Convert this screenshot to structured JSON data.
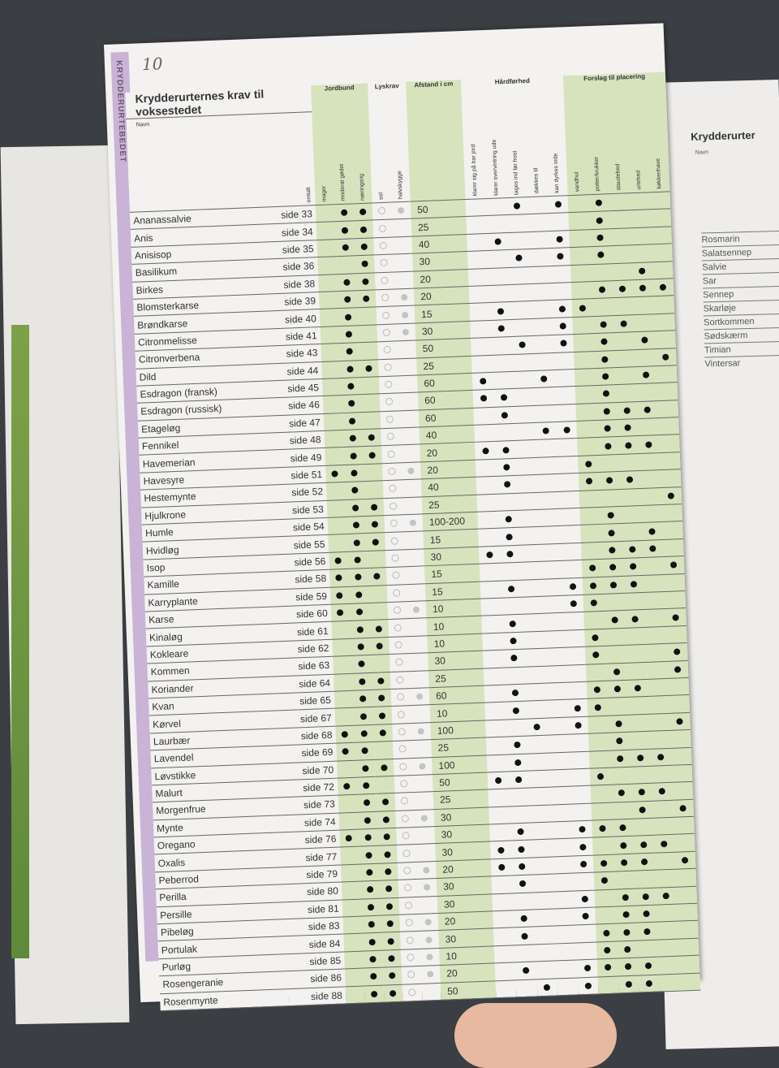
{
  "page": {
    "number": "10",
    "side_tab": "KRYDDERURTEBEDET",
    "title": "Krydderurternes krav til voksestedet"
  },
  "header": {
    "navn": "Navn",
    "omtalt": "omtalt",
    "groups": {
      "jordbund": "Jordbund",
      "lyskrav": "Lyskrav",
      "afstand": "Afstand i cm",
      "hardforhed": "Hårdførhed",
      "placering": "Forslag til placering"
    },
    "jordbund": [
      "mager",
      "moderat gødet",
      "næringsrig"
    ],
    "lyskrav": [
      "sol",
      "halvskygge"
    ],
    "hardforhed": [
      "klarer sig på bar jord",
      "klarer overvintring ude",
      "tages ind før frost",
      "dækkes til",
      "kan dyrkes inde"
    ],
    "placering": [
      "vandhul",
      "potter/krukker",
      "staudebed",
      "urtebed",
      "køkkenhave"
    ]
  },
  "icons": {
    "filled": "black-dot-icon",
    "sol": "open-circle-icon",
    "halvskygge": "grey-dot-icon"
  },
  "colors": {
    "green_column": "#d7e3bd",
    "tab": "#c9b3d6"
  },
  "rows": [
    {
      "name": "Ananassalvie",
      "page": "side 33",
      "dist": "50",
      "soil": "011",
      "light": "11",
      "hard": "00101",
      "place": "01000"
    },
    {
      "name": "Anis",
      "page": "side 34",
      "dist": "25",
      "soil": "011",
      "light": "10",
      "hard": "00000",
      "place": "01000"
    },
    {
      "name": "Anisisop",
      "page": "side 35",
      "dist": "40",
      "soil": "011",
      "light": "10",
      "hard": "01001",
      "place": "01000"
    },
    {
      "name": "Basilikum",
      "page": "side 36",
      "dist": "30",
      "soil": "001",
      "light": "10",
      "hard": "00101",
      "place": "01000"
    },
    {
      "name": "Birkes",
      "page": "side 38",
      "dist": "20",
      "soil": "011",
      "light": "10",
      "hard": "00000",
      "place": "00010"
    },
    {
      "name": "Blomsterkarse",
      "page": "side 39",
      "dist": "20",
      "soil": "011",
      "light": "11",
      "hard": "00000",
      "place": "01111"
    },
    {
      "name": "Brøndkarse",
      "page": "side 40",
      "dist": "15",
      "soil": "010",
      "light": "11",
      "hard": "01001",
      "place": "10000"
    },
    {
      "name": "Citronmelisse",
      "page": "side 41",
      "dist": "30",
      "soil": "010",
      "light": "11",
      "hard": "01001",
      "place": "01100"
    },
    {
      "name": "Citronverbena",
      "page": "side 43",
      "dist": "50",
      "soil": "010",
      "light": "10",
      "hard": "00101",
      "place": "01010"
    },
    {
      "name": "Dild",
      "page": "side 44",
      "dist": "25",
      "soil": "011",
      "light": "10",
      "hard": "00000",
      "place": "01001"
    },
    {
      "name": "Esdragon (fransk)",
      "page": "side 45",
      "dist": "60",
      "soil": "010",
      "light": "10",
      "hard": "10010",
      "place": "01010"
    },
    {
      "name": "Esdragon (russisk)",
      "page": "side 46",
      "dist": "60",
      "soil": "010",
      "light": "10",
      "hard": "11000",
      "place": "01000"
    },
    {
      "name": "Etageløg",
      "page": "side 47",
      "dist": "60",
      "soil": "010",
      "light": "10",
      "hard": "01000",
      "place": "01110"
    },
    {
      "name": "Fennikel",
      "page": "side 48",
      "dist": "40",
      "soil": "011",
      "light": "10",
      "hard": "00011",
      "place": "01100"
    },
    {
      "name": "Havemerian",
      "page": "side 49",
      "dist": "20",
      "soil": "011",
      "light": "10",
      "hard": "11000",
      "place": "01110"
    },
    {
      "name": "Havesyre",
      "page": "side 51",
      "dist": "20",
      "soil": "110",
      "light": "11",
      "hard": "01000",
      "place": "10000"
    },
    {
      "name": "Hestemynte",
      "page": "side 52",
      "dist": "40",
      "soil": "010",
      "light": "10",
      "hard": "01000",
      "place": "11100"
    },
    {
      "name": "Hjulkrone",
      "page": "side 53",
      "dist": "25",
      "soil": "011",
      "light": "10",
      "hard": "00000",
      "place": "00001"
    },
    {
      "name": "Humle",
      "page": "side 54",
      "dist": "100-200",
      "soil": "011",
      "light": "11",
      "hard": "01000",
      "place": "01000"
    },
    {
      "name": "Hvidløg",
      "page": "side 55",
      "dist": "15",
      "soil": "011",
      "light": "10",
      "hard": "01000",
      "place": "01010"
    },
    {
      "name": "Isop",
      "page": "side 56",
      "dist": "30",
      "soil": "110",
      "light": "10",
      "hard": "11000",
      "place": "01110"
    },
    {
      "name": "Kamille",
      "page": "side 58",
      "dist": "15",
      "soil": "111",
      "light": "10",
      "hard": "00000",
      "place": "11101"
    },
    {
      "name": "Karryplante",
      "page": "side 59",
      "dist": "15",
      "soil": "110",
      "light": "10",
      "hard": "01001",
      "place": "11100"
    },
    {
      "name": "Karse",
      "page": "side 60",
      "dist": "10",
      "soil": "110",
      "light": "11",
      "hard": "00001",
      "place": "10000"
    },
    {
      "name": "Kinaløg",
      "page": "side 61",
      "dist": "10",
      "soil": "011",
      "light": "10",
      "hard": "01000",
      "place": "01101"
    },
    {
      "name": "Kokleare",
      "page": "side 62",
      "dist": "10",
      "soil": "011",
      "light": "10",
      "hard": "01000",
      "place": "10000"
    },
    {
      "name": "Kommen",
      "page": "side 63",
      "dist": "30",
      "soil": "010",
      "light": "10",
      "hard": "01000",
      "place": "10001"
    },
    {
      "name": "Koriander",
      "page": "side 64",
      "dist": "25",
      "soil": "011",
      "light": "10",
      "hard": "00000",
      "place": "01001"
    },
    {
      "name": "Kvan",
      "page": "side 65",
      "dist": "60",
      "soil": "011",
      "light": "11",
      "hard": "01000",
      "place": "11100"
    },
    {
      "name": "Kørvel",
      "page": "side 67",
      "dist": "10",
      "soil": "011",
      "light": "10",
      "hard": "01001",
      "place": "10000"
    },
    {
      "name": "Laurbær",
      "page": "side 68",
      "dist": "100",
      "soil": "111",
      "light": "11",
      "hard": "00101",
      "place": "01001"
    },
    {
      "name": "Lavendel",
      "page": "side 69",
      "dist": "25",
      "soil": "110",
      "light": "10",
      "hard": "01000",
      "place": "01000"
    },
    {
      "name": "Løvstikke",
      "page": "side 70",
      "dist": "100",
      "soil": "011",
      "light": "11",
      "hard": "01000",
      "place": "01110"
    },
    {
      "name": "Malurt",
      "page": "side 72",
      "dist": "50",
      "soil": "110",
      "light": "10",
      "hard": "11000",
      "place": "10000"
    },
    {
      "name": "Morgenfrue",
      "page": "side 73",
      "dist": "25",
      "soil": "011",
      "light": "10",
      "hard": "00000",
      "place": "01110"
    },
    {
      "name": "Mynte",
      "page": "side 74",
      "dist": "30",
      "soil": "011",
      "light": "11",
      "hard": "00000",
      "place": "00101"
    },
    {
      "name": "Oregano",
      "page": "side 76",
      "dist": "30",
      "soil": "111",
      "light": "10",
      "hard": "01001",
      "place": "11000"
    },
    {
      "name": "Oxalis",
      "page": "side 77",
      "dist": "30",
      "soil": "011",
      "light": "10",
      "hard": "11001",
      "place": "01110"
    },
    {
      "name": "Peberrod",
      "page": "side 79",
      "dist": "20",
      "soil": "011",
      "light": "11",
      "hard": "11001",
      "place": "11101"
    },
    {
      "name": "Perilla",
      "page": "side 80",
      "dist": "30",
      "soil": "011",
      "light": "11",
      "hard": "01000",
      "place": "10000"
    },
    {
      "name": "Persille",
      "page": "side 81",
      "dist": "30",
      "soil": "011",
      "light": "10",
      "hard": "00001",
      "place": "01110"
    },
    {
      "name": "Pibeløg",
      "page": "side 83",
      "dist": "20",
      "soil": "011",
      "light": "11",
      "hard": "01001",
      "place": "01100"
    },
    {
      "name": "Portulak",
      "page": "side 84",
      "dist": "30",
      "soil": "011",
      "light": "11",
      "hard": "01000",
      "place": "11100"
    },
    {
      "name": "Purløg",
      "page": "side 85",
      "dist": "10",
      "soil": "011",
      "light": "11",
      "hard": "00000",
      "place": "11000"
    },
    {
      "name": "Rosengeranie",
      "page": "side 86",
      "dist": "20",
      "soil": "011",
      "light": "11",
      "hard": "01001",
      "place": "11100"
    },
    {
      "name": "Rosenmynte",
      "page": "side 88",
      "dist": "50",
      "soil": "011",
      "light": "10",
      "hard": "00101",
      "place": "01100"
    }
  ],
  "right_page": {
    "title": "Krydderurter",
    "navn": "Navn",
    "names": [
      "Rosmarin",
      "Salatsennep",
      "Salvie",
      "Sar",
      "Sennep",
      "Skarløje",
      "Sortkommen",
      "Sødskærm",
      "Timian",
      "Vintersar"
    ]
  }
}
